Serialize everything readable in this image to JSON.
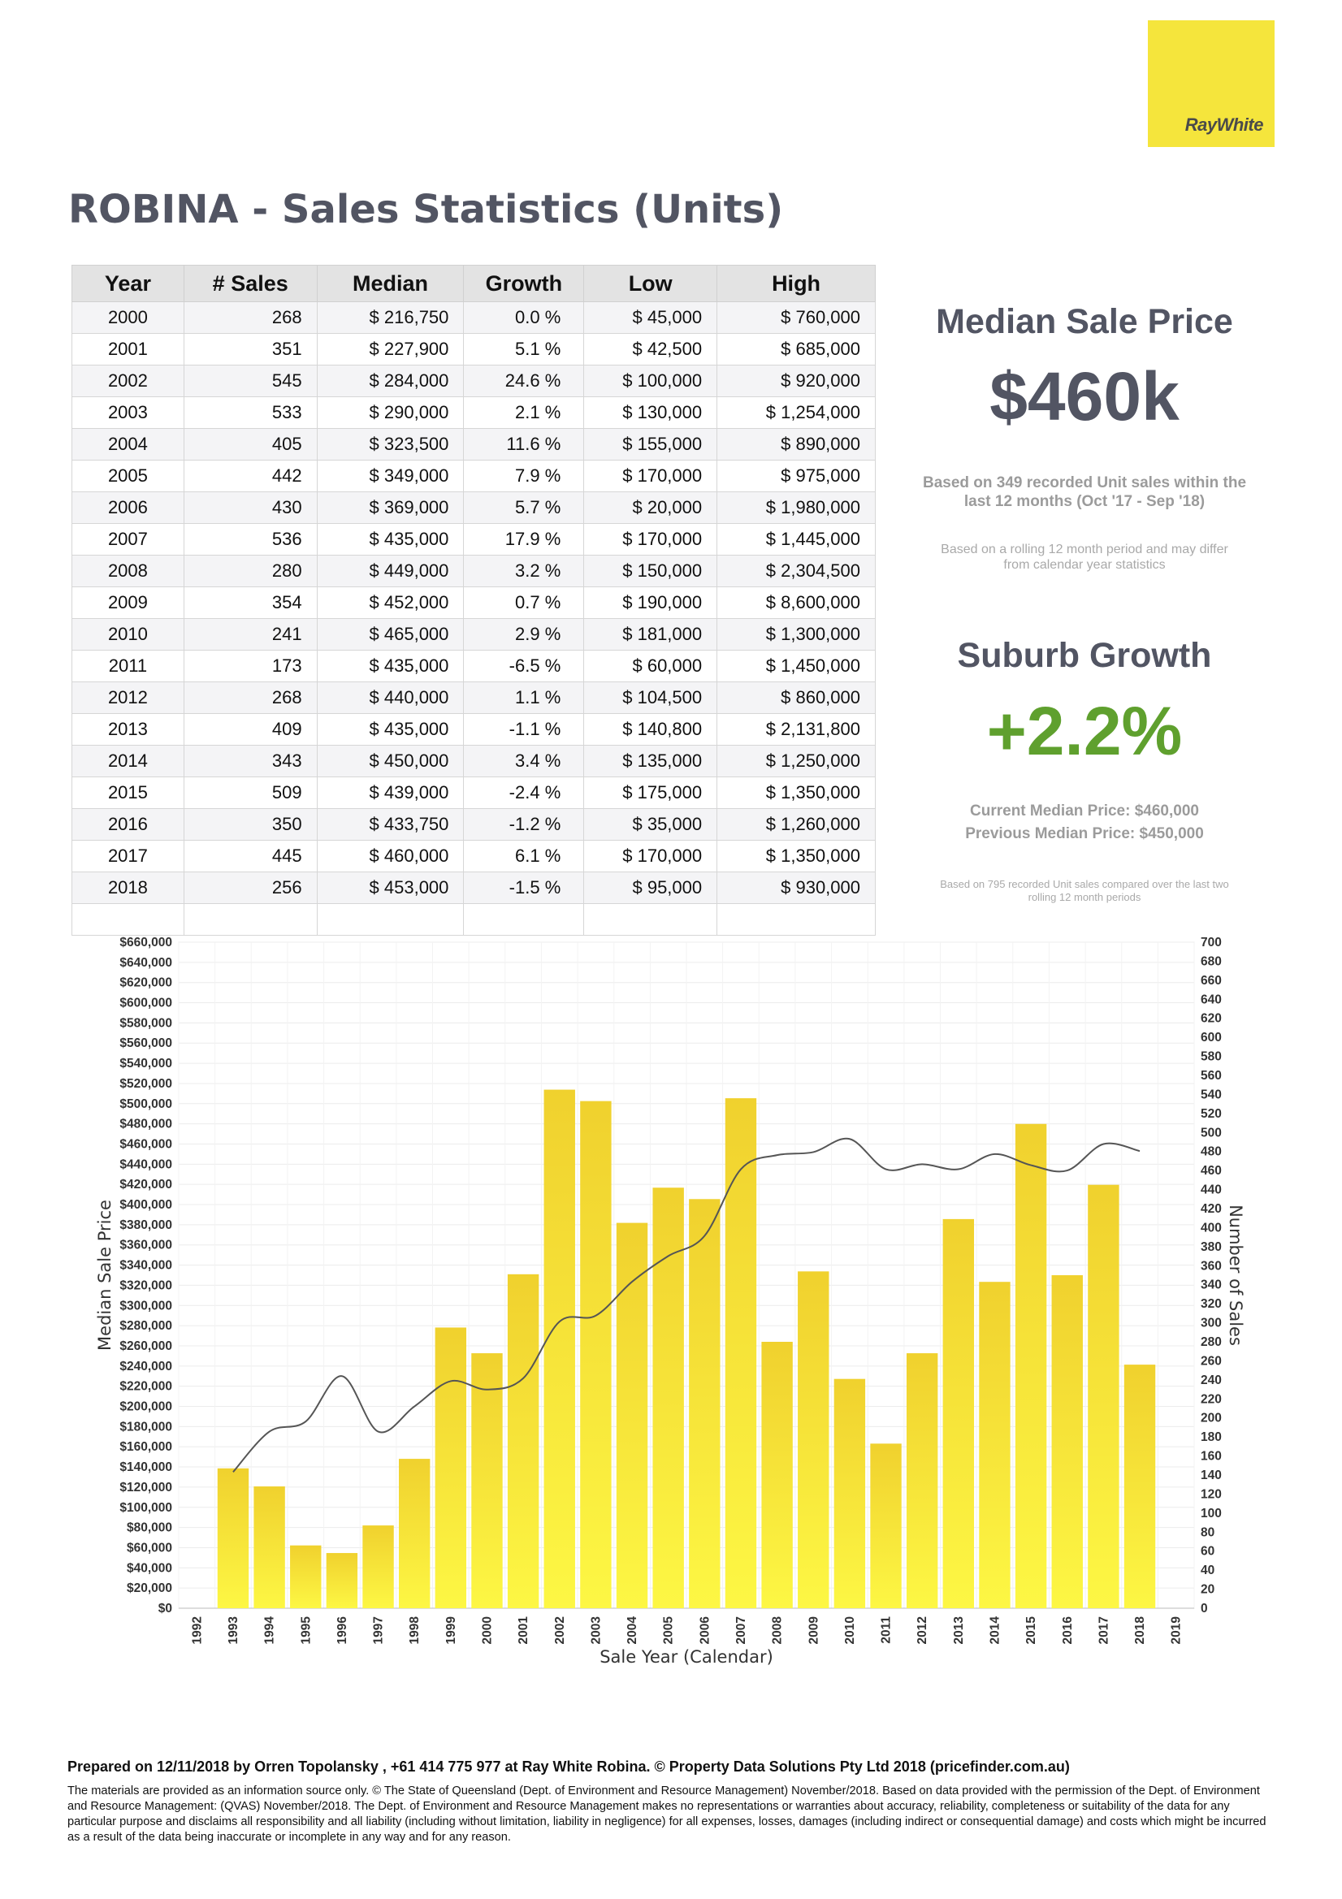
{
  "brand": {
    "logo_text": "RayWhite"
  },
  "title": "ROBINA - Sales Statistics (Units)",
  "table": {
    "headers": [
      "Year",
      "# Sales",
      "Median",
      "Growth",
      "Low",
      "High"
    ],
    "rows": [
      {
        "year": "2000",
        "sales": "268",
        "median": "$ 216,750",
        "growth": "0.0 %",
        "low": "$ 45,000",
        "high": "$ 760,000"
      },
      {
        "year": "2001",
        "sales": "351",
        "median": "$ 227,900",
        "growth": "5.1 %",
        "low": "$ 42,500",
        "high": "$ 685,000"
      },
      {
        "year": "2002",
        "sales": "545",
        "median": "$ 284,000",
        "growth": "24.6 %",
        "low": "$ 100,000",
        "high": "$ 920,000"
      },
      {
        "year": "2003",
        "sales": "533",
        "median": "$ 290,000",
        "growth": "2.1 %",
        "low": "$ 130,000",
        "high": "$ 1,254,000"
      },
      {
        "year": "2004",
        "sales": "405",
        "median": "$ 323,500",
        "growth": "11.6 %",
        "low": "$ 155,000",
        "high": "$ 890,000"
      },
      {
        "year": "2005",
        "sales": "442",
        "median": "$ 349,000",
        "growth": "7.9 %",
        "low": "$ 170,000",
        "high": "$ 975,000"
      },
      {
        "year": "2006",
        "sales": "430",
        "median": "$ 369,000",
        "growth": "5.7 %",
        "low": "$ 20,000",
        "high": "$ 1,980,000"
      },
      {
        "year": "2007",
        "sales": "536",
        "median": "$ 435,000",
        "growth": "17.9 %",
        "low": "$ 170,000",
        "high": "$ 1,445,000"
      },
      {
        "year": "2008",
        "sales": "280",
        "median": "$ 449,000",
        "growth": "3.2 %",
        "low": "$ 150,000",
        "high": "$ 2,304,500"
      },
      {
        "year": "2009",
        "sales": "354",
        "median": "$ 452,000",
        "growth": "0.7 %",
        "low": "$ 190,000",
        "high": "$ 8,600,000"
      },
      {
        "year": "2010",
        "sales": "241",
        "median": "$ 465,000",
        "growth": "2.9 %",
        "low": "$ 181,000",
        "high": "$ 1,300,000"
      },
      {
        "year": "2011",
        "sales": "173",
        "median": "$ 435,000",
        "growth": "-6.5 %",
        "low": "$ 60,000",
        "high": "$ 1,450,000"
      },
      {
        "year": "2012",
        "sales": "268",
        "median": "$ 440,000",
        "growth": "1.1 %",
        "low": "$ 104,500",
        "high": "$ 860,000"
      },
      {
        "year": "2013",
        "sales": "409",
        "median": "$ 435,000",
        "growth": "-1.1 %",
        "low": "$ 140,800",
        "high": "$ 2,131,800"
      },
      {
        "year": "2014",
        "sales": "343",
        "median": "$ 450,000",
        "growth": "3.4 %",
        "low": "$ 135,000",
        "high": "$ 1,250,000"
      },
      {
        "year": "2015",
        "sales": "509",
        "median": "$ 439,000",
        "growth": "-2.4 %",
        "low": "$ 175,000",
        "high": "$ 1,350,000"
      },
      {
        "year": "2016",
        "sales": "350",
        "median": "$ 433,750",
        "growth": "-1.2 %",
        "low": "$ 35,000",
        "high": "$ 1,260,000"
      },
      {
        "year": "2017",
        "sales": "445",
        "median": "$ 460,000",
        "growth": "6.1 %",
        "low": "$ 170,000",
        "high": "$ 1,350,000"
      },
      {
        "year": "2018",
        "sales": "256",
        "median": "$ 453,000",
        "growth": "-1.5 %",
        "low": "$ 95,000",
        "high": "$ 930,000"
      }
    ]
  },
  "median_panel": {
    "heading": "Median Sale Price",
    "value": "$460k",
    "note_line1": "Based on 349 recorded Unit sales within the",
    "note_line2": "last 12 months (Oct '17 - Sep '18)",
    "small_line1": "Based on a rolling 12 month period and may differ",
    "small_line2": "from calendar year statistics"
  },
  "growth_panel": {
    "heading": "Suburb Growth",
    "value": "+2.2%",
    "current": "Current Median Price: $460,000",
    "previous": "Previous Median Price: $450,000",
    "tiny_line1": "Based on 795 recorded Unit sales compared over the last two",
    "tiny_line2": "rolling 12 month periods"
  },
  "chart_data": {
    "type": "bar",
    "xlabel": "Sale Year (Calendar)",
    "ylabel_left": "Median Sale Price",
    "ylabel_right": "Number of Sales",
    "categories": [
      "1992",
      "1993",
      "1994",
      "1995",
      "1996",
      "1997",
      "1998",
      "1999",
      "2000",
      "2001",
      "2002",
      "2003",
      "2004",
      "2005",
      "2006",
      "2007",
      "2008",
      "2009",
      "2010",
      "2011",
      "2012",
      "2013",
      "2014",
      "2015",
      "2016",
      "2017",
      "2018",
      "2019"
    ],
    "y_left_range": [
      0,
      660000
    ],
    "y_left_ticks": [
      "$0",
      "$20,000",
      "$40,000",
      "$60,000",
      "$80,000",
      "$100,000",
      "$120,000",
      "$140,000",
      "$160,000",
      "$180,000",
      "$200,000",
      "$220,000",
      "$240,000",
      "$260,000",
      "$280,000",
      "$300,000",
      "$320,000",
      "$340,000",
      "$360,000",
      "$380,000",
      "$400,000",
      "$420,000",
      "$440,000",
      "$460,000",
      "$480,000",
      "$500,000",
      "$520,000",
      "$540,000",
      "$560,000",
      "$580,000",
      "$600,000",
      "$620,000",
      "$640,000",
      "$660,000"
    ],
    "y_right_range": [
      0,
      700
    ],
    "y_right_ticks": [
      "0",
      "20",
      "40",
      "60",
      "80",
      "100",
      "120",
      "140",
      "160",
      "180",
      "200",
      "220",
      "240",
      "260",
      "280",
      "300",
      "320",
      "340",
      "360",
      "380",
      "400",
      "420",
      "440",
      "460",
      "480",
      "500",
      "520",
      "540",
      "560",
      "580",
      "600",
      "620",
      "640",
      "660",
      "680",
      "700"
    ],
    "grid": true,
    "series": [
      {
        "name": "Number of Sales",
        "axis": "right",
        "kind": "bar",
        "values": [
          null,
          147,
          128,
          66,
          58,
          87,
          157,
          295,
          268,
          351,
          545,
          533,
          405,
          442,
          430,
          536,
          280,
          354,
          241,
          173,
          268,
          409,
          343,
          509,
          350,
          445,
          256,
          null
        ]
      },
      {
        "name": "Median Sale Price",
        "axis": "left",
        "kind": "line",
        "values": [
          null,
          135000,
          175000,
          185000,
          230000,
          175000,
          200000,
          225000,
          216750,
          227900,
          284000,
          290000,
          323500,
          349000,
          369000,
          435000,
          449000,
          452000,
          465000,
          435000,
          440000,
          435000,
          450000,
          439000,
          433750,
          460000,
          453000,
          null
        ]
      }
    ],
    "colors": {
      "bar_top": "#f0d12e",
      "bar_bottom": "#fdf744",
      "line": "#555555",
      "grid": "#ececec"
    }
  },
  "footer": {
    "prepared": "Prepared on 12/11/2018 by Orren Topolansky , +61 414 775 977 at Ray White Robina. © Property Data Solutions Pty Ltd 2018 (pricefinder.com.au)",
    "legal": "The materials are provided as an information source only.  © The State of Queensland (Dept. of Environment and Resource Management) November/2018. Based on data provided with the permission of the Dept. of Environment and Resource Management: (QVAS) November/2018. The Dept. of Environment and Resource Management makes no representations or warranties about accuracy, reliability, completeness or suitability of the data for any particular purpose and disclaims all responsibility and all liability (including without limitation, liability in negligence) for all expenses, losses, damages (including indirect or consequential damage) and costs which might be incurred as a result of the data being inaccurate or incomplete in any way and for any reason."
  }
}
